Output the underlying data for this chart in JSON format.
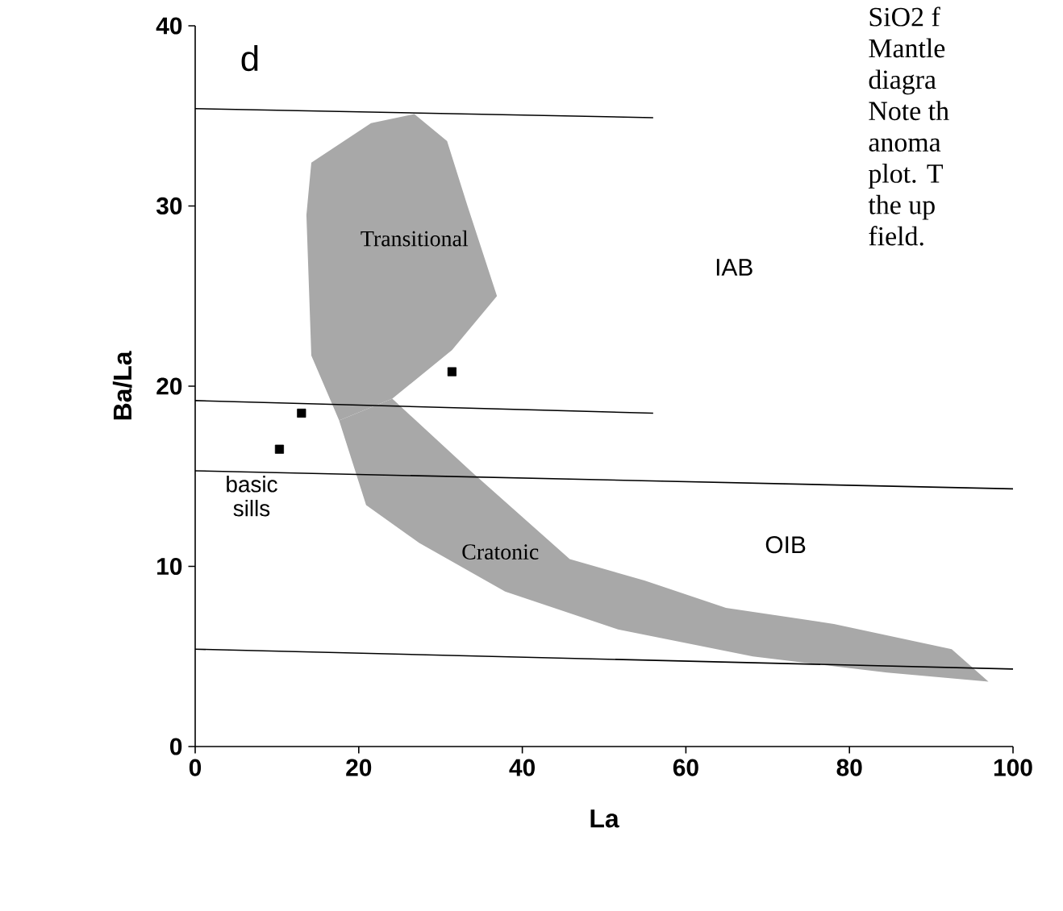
{
  "chart_data": {
    "type": "scatter",
    "xlabel": "La",
    "ylabel": "Ba/La",
    "xlim": [
      0,
      100
    ],
    "ylim": [
      0,
      40
    ],
    "xticks": [
      0,
      20,
      40,
      60,
      80,
      100
    ],
    "yticks": [
      0,
      10,
      20,
      30,
      40
    ],
    "series": [
      {
        "type": "area",
        "name": "Transitional",
        "color": "#a8a8a8",
        "x": [
          13.6,
          14.2,
          21.5,
          26.8,
          30.8,
          33.3,
          36.9,
          31.4,
          24.1,
          17.6,
          14.2
        ],
        "values": [
          29.5,
          32.4,
          34.6,
          35.1,
          33.6,
          30.0,
          25.0,
          22.0,
          19.3,
          18.1,
          21.7
        ]
      },
      {
        "type": "area",
        "name": "Cratonic",
        "color": "#a8a8a8",
        "x": [
          24.1,
          33.9,
          45.8,
          55.0,
          64.9,
          78.1,
          92.5,
          97.0,
          84.6,
          68.2,
          51.7,
          37.9,
          27.4,
          20.9,
          17.6
        ],
        "values": [
          19.3,
          15.2,
          10.4,
          9.2,
          7.7,
          6.8,
          5.4,
          3.6,
          4.1,
          5.0,
          6.5,
          8.6,
          11.3,
          13.4,
          18.1
        ]
      },
      {
        "type": "line",
        "color": "#000000",
        "x": [
          0,
          56
        ],
        "values": [
          35.4,
          34.9
        ]
      },
      {
        "type": "line",
        "color": "#000000",
        "x": [
          0,
          56
        ],
        "values": [
          19.2,
          18.5
        ]
      },
      {
        "type": "line",
        "color": "#000000",
        "x": [
          0,
          100
        ],
        "values": [
          15.3,
          14.3
        ]
      },
      {
        "type": "line",
        "color": "#000000",
        "x": [
          0,
          100
        ],
        "values": [
          5.4,
          4.3
        ]
      },
      {
        "color": "#000000",
        "marker": "square",
        "x": [
          10.3,
          13.0,
          31.4
        ],
        "values": [
          16.5,
          18.5,
          20.8
        ]
      }
    ],
    "annotations": [
      "d",
      "IAB",
      "OIB",
      "basic sills",
      "SiO2 f",
      "Mantle",
      "diagra",
      "Note th",
      "anoma",
      "plot. T",
      "the up",
      "field."
    ]
  }
}
